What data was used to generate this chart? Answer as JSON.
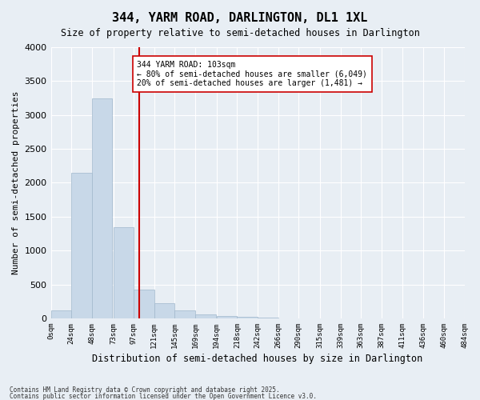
{
  "title": "344, YARM ROAD, DARLINGTON, DL1 1XL",
  "subtitle": "Size of property relative to semi-detached houses in Darlington",
  "xlabel": "Distribution of semi-detached houses by size in Darlington",
  "ylabel": "Number of semi-detached properties",
  "bar_color": "#c8d8e8",
  "bar_edge_color": "#a0b8cc",
  "background_color": "#e8eef4",
  "grid_color": "#ffffff",
  "bin_starts": [
    0,
    24,
    48,
    73,
    97,
    121,
    145,
    169,
    194,
    218,
    242,
    266,
    290,
    315,
    339,
    363,
    387,
    411,
    436,
    460
  ],
  "bin_labels": [
    "0sqm",
    "24sqm",
    "48sqm",
    "73sqm",
    "97sqm",
    "121sqm",
    "145sqm",
    "169sqm",
    "194sqm",
    "218sqm",
    "242sqm",
    "266sqm",
    "290sqm",
    "315sqm",
    "339sqm",
    "363sqm",
    "387sqm",
    "411sqm",
    "436sqm",
    "460sqm",
    "484sqm"
  ],
  "bar_values": [
    120,
    2150,
    3250,
    1340,
    420,
    220,
    120,
    60,
    30,
    20,
    10,
    5,
    0,
    0,
    0,
    0,
    0,
    0,
    0,
    0
  ],
  "property_size": 103,
  "pct_smaller": 80,
  "count_smaller": 6049,
  "pct_larger": 20,
  "count_larger": 1481,
  "property_label": "344 YARM ROAD: 103sqm",
  "annotation_line": "← 80% of semi-detached houses are smaller (6,049)",
  "annotation_line2": "20% of semi-detached houses are larger (1,481) →",
  "ylim": [
    0,
    4000
  ],
  "yticks": [
    0,
    500,
    1000,
    1500,
    2000,
    2500,
    3000,
    3500,
    4000
  ],
  "red_line_color": "#cc0000",
  "annotation_box_color": "#ffffff",
  "annotation_box_edge": "#cc0000",
  "footer1": "Contains HM Land Registry data © Crown copyright and database right 2025.",
  "footer2": "Contains public sector information licensed under the Open Government Licence v3.0."
}
